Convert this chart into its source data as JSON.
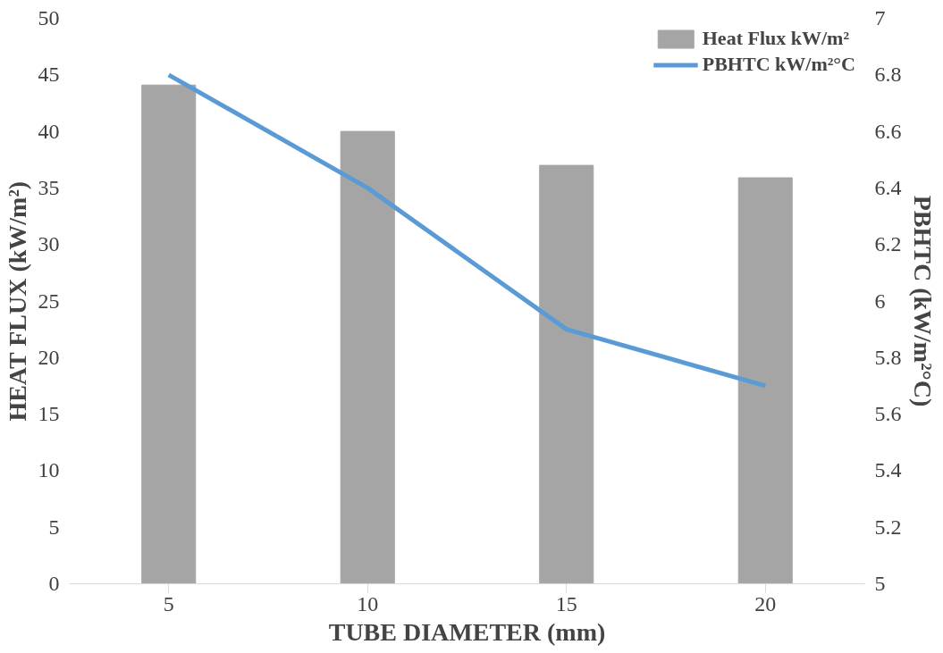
{
  "chart_data": {
    "type": "bar",
    "categories": [
      "5",
      "10",
      "15",
      "20"
    ],
    "xlabel": "TUBE DIAMETER (mm)",
    "ylabel": "HEAT FLUX (kW/m²)",
    "y2label": "PBHTC (kW/m²°C)",
    "series": [
      {
        "name": "Heat Flux kW/m²",
        "color": "#a5a5a5",
        "values": [
          44.1,
          40.0,
          37.0,
          35.9
        ]
      },
      {
        "name": "PBHTC kW/m²°C",
        "type": "line",
        "axis": "y2",
        "color": "#5b9bd5",
        "values": [
          6.8,
          6.4,
          5.9,
          5.7
        ]
      }
    ],
    "ylim": [
      0,
      50
    ],
    "yticks": [
      0,
      5,
      10,
      15,
      20,
      25,
      30,
      35,
      40,
      45,
      50
    ],
    "y2lim": [
      5,
      7
    ],
    "y2ticks": [
      5,
      5.2,
      5.4,
      5.6,
      5.8,
      6,
      6.2,
      6.4,
      6.6,
      6.8,
      7
    ],
    "grid": false,
    "legend": "top right"
  }
}
